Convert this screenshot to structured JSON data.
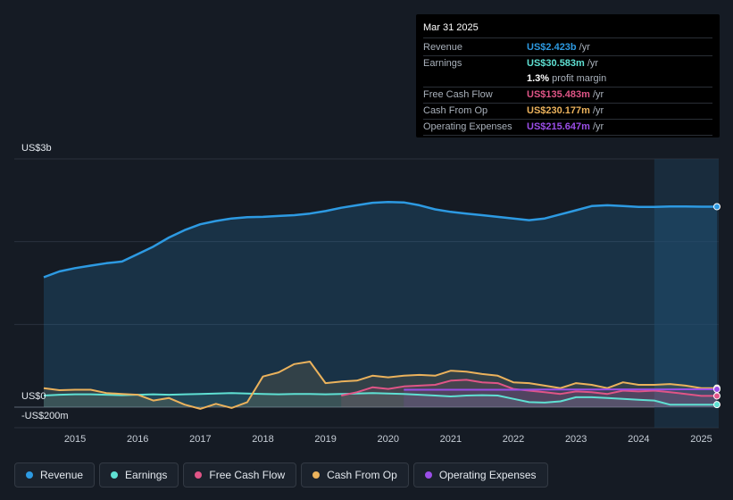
{
  "tooltip": {
    "date": "Mar 31 2025",
    "rows": [
      {
        "label": "Revenue",
        "value": "US$2.423b",
        "unit": "/yr",
        "color": "#2d9ae2"
      },
      {
        "label": "Earnings",
        "value": "US$30.583m",
        "unit": "/yr",
        "color": "#5fe0d3"
      },
      {
        "label": "",
        "value": "1.3%",
        "unit": "profit margin",
        "color": "#ffffff"
      },
      {
        "label": "Free Cash Flow",
        "value": "US$135.483m",
        "unit": "/yr",
        "color": "#e05587"
      },
      {
        "label": "Cash From Op",
        "value": "US$230.177m",
        "unit": "/yr",
        "color": "#ebb25c"
      },
      {
        "label": "Operating Expenses",
        "value": "US$215.647m",
        "unit": "/yr",
        "color": "#9b4ee8"
      }
    ]
  },
  "legend": [
    {
      "label": "Revenue",
      "color": "#2d9ae2"
    },
    {
      "label": "Earnings",
      "color": "#5fe0d3"
    },
    {
      "label": "Free Cash Flow",
      "color": "#e05587"
    },
    {
      "label": "Cash From Op",
      "color": "#ebb25c"
    },
    {
      "label": "Operating Expenses",
      "color": "#9b4ee8"
    }
  ],
  "chart_data": {
    "type": "area",
    "title": "",
    "units": "US$ millions",
    "y_labels": {
      "top": "US$3b",
      "zero": "US$0",
      "bottom": "-US$200m"
    },
    "ylim": [
      -200,
      3000
    ],
    "xlim": [
      2014.5,
      2025.25
    ],
    "x_ticks": [
      "2015",
      "2016",
      "2017",
      "2018",
      "2019",
      "2020",
      "2021",
      "2022",
      "2023",
      "2024",
      "2025"
    ],
    "x_tick_values": [
      2015,
      2016,
      2017,
      2018,
      2019,
      2020,
      2021,
      2022,
      2023,
      2024,
      2025
    ],
    "highlight_start": 2024.25,
    "series": [
      {
        "name": "Revenue",
        "color": "#2d9ae2",
        "points": [
          [
            2014.5,
            1570
          ],
          [
            2014.75,
            1640
          ],
          [
            2015,
            1680
          ],
          [
            2015.25,
            1710
          ],
          [
            2015.5,
            1740
          ],
          [
            2015.75,
            1760
          ],
          [
            2016,
            1850
          ],
          [
            2016.25,
            1940
          ],
          [
            2016.5,
            2050
          ],
          [
            2016.75,
            2140
          ],
          [
            2017,
            2210
          ],
          [
            2017.25,
            2250
          ],
          [
            2017.5,
            2280
          ],
          [
            2017.75,
            2295
          ],
          [
            2018,
            2300
          ],
          [
            2018.25,
            2310
          ],
          [
            2018.5,
            2320
          ],
          [
            2018.75,
            2340
          ],
          [
            2019,
            2370
          ],
          [
            2019.25,
            2410
          ],
          [
            2019.5,
            2440
          ],
          [
            2019.75,
            2470
          ],
          [
            2020,
            2480
          ],
          [
            2020.25,
            2475
          ],
          [
            2020.5,
            2440
          ],
          [
            2020.75,
            2390
          ],
          [
            2021,
            2360
          ],
          [
            2021.25,
            2340
          ],
          [
            2021.5,
            2320
          ],
          [
            2021.75,
            2300
          ],
          [
            2022,
            2280
          ],
          [
            2022.25,
            2260
          ],
          [
            2022.5,
            2280
          ],
          [
            2022.75,
            2330
          ],
          [
            2023,
            2380
          ],
          [
            2023.25,
            2430
          ],
          [
            2023.5,
            2440
          ],
          [
            2023.75,
            2430
          ],
          [
            2024,
            2420
          ],
          [
            2024.25,
            2420
          ],
          [
            2024.5,
            2425
          ],
          [
            2024.75,
            2425
          ],
          [
            2025,
            2423
          ],
          [
            2025.25,
            2423
          ]
        ]
      },
      {
        "name": "Earnings",
        "color": "#5fe0d3",
        "points": [
          [
            2014.5,
            140
          ],
          [
            2014.75,
            150
          ],
          [
            2015,
            155
          ],
          [
            2015.25,
            155
          ],
          [
            2015.5,
            150
          ],
          [
            2015.75,
            145
          ],
          [
            2016,
            150
          ],
          [
            2016.25,
            155
          ],
          [
            2016.5,
            150
          ],
          [
            2016.75,
            155
          ],
          [
            2017,
            160
          ],
          [
            2017.25,
            165
          ],
          [
            2017.5,
            170
          ],
          [
            2017.75,
            165
          ],
          [
            2018,
            160
          ],
          [
            2018.25,
            155
          ],
          [
            2018.5,
            160
          ],
          [
            2018.75,
            160
          ],
          [
            2019,
            155
          ],
          [
            2019.25,
            160
          ],
          [
            2019.5,
            165
          ],
          [
            2019.75,
            170
          ],
          [
            2020,
            165
          ],
          [
            2020.25,
            160
          ],
          [
            2020.5,
            150
          ],
          [
            2020.75,
            140
          ],
          [
            2021,
            130
          ],
          [
            2021.25,
            140
          ],
          [
            2021.5,
            145
          ],
          [
            2021.75,
            140
          ],
          [
            2022,
            100
          ],
          [
            2022.25,
            60
          ],
          [
            2022.5,
            55
          ],
          [
            2022.75,
            70
          ],
          [
            2023,
            120
          ],
          [
            2023.25,
            120
          ],
          [
            2023.5,
            110
          ],
          [
            2023.75,
            100
          ],
          [
            2024,
            90
          ],
          [
            2024.25,
            80
          ],
          [
            2024.5,
            30
          ],
          [
            2024.75,
            30
          ],
          [
            2025,
            30.583
          ],
          [
            2025.25,
            30.583
          ]
        ]
      },
      {
        "name": "Free Cash Flow",
        "color": "#e05587",
        "points": [
          [
            2019.25,
            140
          ],
          [
            2019.5,
            180
          ],
          [
            2019.75,
            240
          ],
          [
            2020,
            220
          ],
          [
            2020.25,
            250
          ],
          [
            2020.5,
            260
          ],
          [
            2020.75,
            270
          ],
          [
            2021,
            320
          ],
          [
            2021.25,
            330
          ],
          [
            2021.5,
            300
          ],
          [
            2021.75,
            290
          ],
          [
            2022,
            220
          ],
          [
            2022.25,
            200
          ],
          [
            2022.5,
            180
          ],
          [
            2022.75,
            160
          ],
          [
            2023,
            190
          ],
          [
            2023.25,
            180
          ],
          [
            2023.5,
            160
          ],
          [
            2023.75,
            200
          ],
          [
            2024,
            190
          ],
          [
            2024.25,
            200
          ],
          [
            2024.5,
            180
          ],
          [
            2024.75,
            160
          ],
          [
            2025,
            135.483
          ],
          [
            2025.25,
            135.483
          ]
        ]
      },
      {
        "name": "Cash From Op",
        "color": "#ebb25c",
        "points": [
          [
            2014.5,
            230
          ],
          [
            2014.75,
            205
          ],
          [
            2015,
            210
          ],
          [
            2015.25,
            210
          ],
          [
            2015.5,
            170
          ],
          [
            2015.75,
            160
          ],
          [
            2016,
            150
          ],
          [
            2016.25,
            80
          ],
          [
            2016.5,
            110
          ],
          [
            2016.75,
            30
          ],
          [
            2017,
            -20
          ],
          [
            2017.25,
            40
          ],
          [
            2017.5,
            -10
          ],
          [
            2017.75,
            60
          ],
          [
            2018,
            370
          ],
          [
            2018.25,
            420
          ],
          [
            2018.5,
            520
          ],
          [
            2018.75,
            550
          ],
          [
            2019,
            290
          ],
          [
            2019.25,
            310
          ],
          [
            2019.5,
            320
          ],
          [
            2019.75,
            380
          ],
          [
            2020,
            360
          ],
          [
            2020.25,
            380
          ],
          [
            2020.5,
            390
          ],
          [
            2020.75,
            380
          ],
          [
            2021,
            440
          ],
          [
            2021.25,
            430
          ],
          [
            2021.5,
            400
          ],
          [
            2021.75,
            380
          ],
          [
            2022,
            300
          ],
          [
            2022.25,
            290
          ],
          [
            2022.5,
            260
          ],
          [
            2022.75,
            230
          ],
          [
            2023,
            290
          ],
          [
            2023.25,
            270
          ],
          [
            2023.5,
            230
          ],
          [
            2023.75,
            300
          ],
          [
            2024,
            270
          ],
          [
            2024.25,
            270
          ],
          [
            2024.5,
            280
          ],
          [
            2024.75,
            260
          ],
          [
            2025,
            230.177
          ],
          [
            2025.25,
            230.177
          ]
        ]
      },
      {
        "name": "Operating Expenses",
        "color": "#9b4ee8",
        "points": [
          [
            2020.25,
            210
          ],
          [
            2020.5,
            210
          ],
          [
            2020.75,
            210
          ],
          [
            2021,
            210
          ],
          [
            2021.25,
            210
          ],
          [
            2021.5,
            210
          ],
          [
            2021.75,
            210
          ],
          [
            2022,
            210
          ],
          [
            2022.25,
            212
          ],
          [
            2022.5,
            213
          ],
          [
            2022.75,
            213
          ],
          [
            2023,
            214
          ],
          [
            2023.25,
            214
          ],
          [
            2023.5,
            215
          ],
          [
            2023.75,
            215
          ],
          [
            2024,
            215
          ],
          [
            2024.25,
            215
          ],
          [
            2024.5,
            215
          ],
          [
            2024.75,
            215.5
          ],
          [
            2025,
            215.647
          ],
          [
            2025.25,
            215.647
          ]
        ]
      }
    ]
  }
}
